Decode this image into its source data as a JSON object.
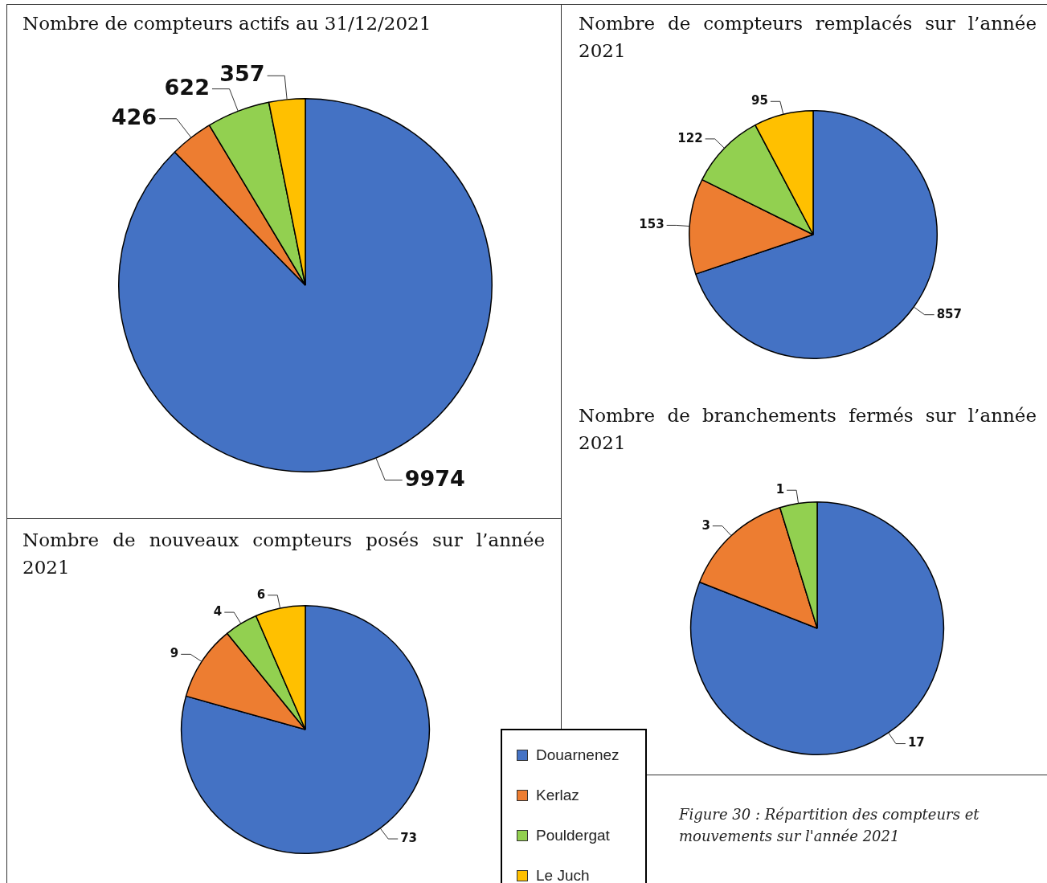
{
  "chart_data": [
    {
      "type": "pie",
      "title": "Nombre de compteurs actifs au 31/12/2021",
      "categories": [
        null,
        null,
        null,
        null
      ],
      "values": [
        9974,
        426,
        622,
        357
      ],
      "colors": [
        "#4472c4",
        "#ed7d31",
        "#92d050",
        "#ffc000"
      ],
      "data_labels": true
    },
    {
      "type": "pie",
      "title": "Nombre de compteurs remplacés sur l’année 2021",
      "categories": [
        null,
        null,
        null,
        null
      ],
      "values": [
        857,
        153,
        122,
        95
      ],
      "colors": [
        "#4472c4",
        "#ed7d31",
        "#92d050",
        "#ffc000"
      ],
      "data_labels": true
    },
    {
      "type": "pie",
      "title": "Nombre de nouveaux compteurs posés sur l’année 2021",
      "categories": [
        "Douarnenez",
        "Kerlaz",
        "Pouldergat",
        "Le Juch"
      ],
      "values": [
        73,
        9,
        4,
        6
      ],
      "colors": [
        "#4472c4",
        "#ed7d31",
        "#92d050",
        "#ffc000"
      ],
      "data_labels": true,
      "legend": "right"
    },
    {
      "type": "pie",
      "title": "Nombre de branchements fermés sur l’année 2021",
      "categories": [
        null,
        null,
        null
      ],
      "values": [
        17,
        3,
        1
      ],
      "colors": [
        "#4472c4",
        "#ed7d31",
        "#92d050"
      ],
      "data_labels": true,
      "annotations": [
        "Figure 30 : Répartition des compteurs et mouvements sur l'année 2021"
      ]
    }
  ]
}
